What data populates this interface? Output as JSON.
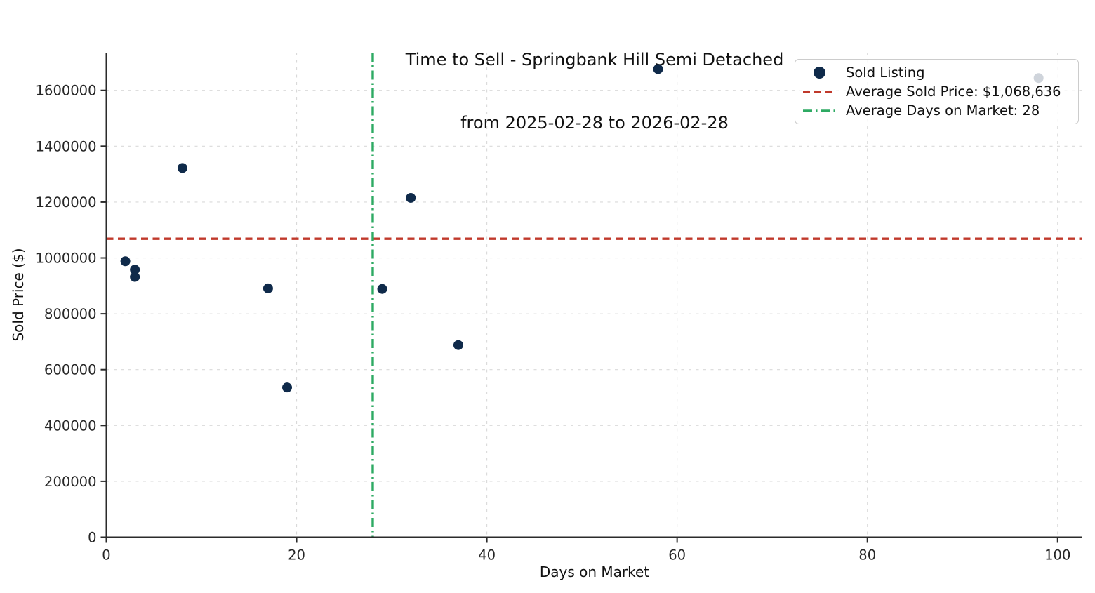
{
  "title": {
    "line1": "Time to Sell - Springbank Hill Semi Detached",
    "line2": "from 2025-02-28 to 2026-02-28"
  },
  "legend": {
    "sold_listing_label": "Sold Listing",
    "avg_price_label": "Average Sold Price: $1,068,636",
    "avg_days_label": "Average Days on Market: 28"
  },
  "chart_data": {
    "type": "scatter",
    "title": "Time to Sell - Springbank Hill Semi Detached from 2025-02-28 to 2026-02-28",
    "xlabel": "Days on Market",
    "ylabel": "Sold Price ($)",
    "xlim": [
      0,
      102.6
    ],
    "ylim": [
      0,
      1735000
    ],
    "x_ticks": [
      0,
      20,
      40,
      60,
      80,
      100
    ],
    "y_ticks": [
      0,
      200000,
      400000,
      600000,
      800000,
      1000000,
      1200000,
      1400000,
      1600000
    ],
    "grid": true,
    "legend_position": "upper right",
    "series": [
      {
        "name": "Sold Listing",
        "points": [
          {
            "days_on_market": 2,
            "sold_price": 988000
          },
          {
            "days_on_market": 3,
            "sold_price": 958000
          },
          {
            "days_on_market": 3,
            "sold_price": 932000
          },
          {
            "days_on_market": 8,
            "sold_price": 1322000
          },
          {
            "days_on_market": 17,
            "sold_price": 891000
          },
          {
            "days_on_market": 19,
            "sold_price": 536000
          },
          {
            "days_on_market": 29,
            "sold_price": 889000
          },
          {
            "days_on_market": 32,
            "sold_price": 1215000
          },
          {
            "days_on_market": 37,
            "sold_price": 688000
          },
          {
            "days_on_market": 58,
            "sold_price": 1676000
          },
          {
            "days_on_market": 98,
            "sold_price": 1644000
          }
        ]
      }
    ],
    "reference_lines": {
      "average_sold_price": 1068636,
      "average_days_on_market": 28
    }
  },
  "colors": {
    "point": "#0f2a4a",
    "avg_price_line": "#c0392b",
    "avg_days_line": "#2eaa63",
    "grid": "#d9d9d9",
    "axis": "#2b2b2b",
    "tick_text": "#262626",
    "text": "#111111",
    "legend_border": "#cccccc"
  }
}
